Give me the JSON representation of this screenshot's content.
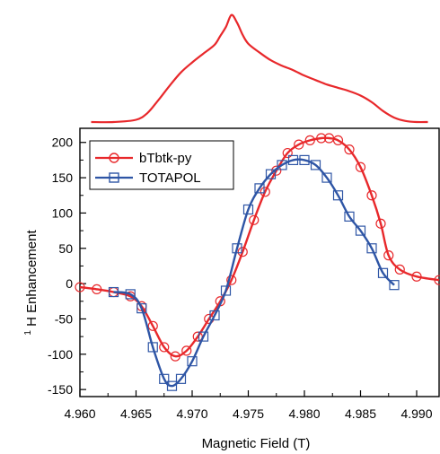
{
  "chart_data": [
    {
      "type": "line",
      "title": "",
      "xlabel": "",
      "ylabel": "",
      "xlim": [
        4.96,
        4.992
      ],
      "color": "#e8282b",
      "x": [
        4.961,
        4.963,
        4.965,
        4.966,
        4.967,
        4.968,
        4.969,
        4.97,
        4.971,
        4.972,
        4.9725,
        4.973,
        4.9735,
        4.974,
        4.9745,
        4.975,
        4.976,
        4.977,
        4.978,
        4.979,
        4.98,
        4.981,
        4.982,
        4.983,
        4.984,
        4.985,
        4.986,
        4.987,
        4.988,
        4.989,
        4.99,
        4.991
      ],
      "values": [
        0.0,
        0.0,
        0.02,
        0.08,
        0.2,
        0.33,
        0.45,
        0.54,
        0.62,
        0.7,
        0.78,
        0.86,
        0.97,
        0.9,
        0.79,
        0.71,
        0.63,
        0.56,
        0.51,
        0.47,
        0.42,
        0.38,
        0.34,
        0.31,
        0.28,
        0.24,
        0.18,
        0.1,
        0.04,
        0.01,
        0.0,
        0.0
      ]
    },
    {
      "type": "line",
      "title": "",
      "xlabel": "Magnetic Field (T)",
      "ylabel_superscript": "1",
      "ylabel": "H Enhancement",
      "xlim": [
        4.96,
        4.992
      ],
      "ylim": [
        -160,
        220
      ],
      "xticks": [
        "4.960",
        "4.965",
        "4.970",
        "4.975",
        "4.980",
        "4.985",
        "4.990"
      ],
      "yticks": [
        "-150",
        "-100",
        "-50",
        "0",
        "50",
        "100",
        "150",
        "200"
      ],
      "legend_position": "top-left",
      "series": [
        {
          "name": "bTbtk-py",
          "color": "#e8282b",
          "marker": "circle",
          "x": [
            4.96,
            4.9615,
            4.963,
            4.9645,
            4.9655,
            4.9665,
            4.9675,
            4.9685,
            4.9695,
            4.9705,
            4.9715,
            4.9725,
            4.9735,
            4.9745,
            4.9755,
            4.9765,
            4.9775,
            4.9785,
            4.9795,
            4.9805,
            4.9815,
            4.9822,
            4.983,
            4.984,
            4.985,
            4.986,
            4.9868,
            4.9875,
            4.9885,
            4.99,
            4.992
          ],
          "values": [
            -5,
            -8,
            -12,
            -18,
            -32,
            -60,
            -90,
            -103,
            -95,
            -75,
            -50,
            -25,
            5,
            45,
            90,
            130,
            160,
            185,
            197,
            203,
            206,
            206,
            203,
            190,
            165,
            125,
            85,
            40,
            20,
            10,
            5
          ]
        },
        {
          "name": "TOTAPOL",
          "color": "#2e55a5",
          "marker": "square",
          "x": [
            4.963,
            4.9645,
            4.9655,
            4.9665,
            4.9675,
            4.9682,
            4.969,
            4.97,
            4.971,
            4.972,
            4.973,
            4.974,
            4.975,
            4.976,
            4.977,
            4.978,
            4.979,
            4.98,
            4.981,
            4.982,
            4.983,
            4.984,
            4.985,
            4.986,
            4.987,
            4.988
          ],
          "values": [
            -12,
            -15,
            -35,
            -90,
            -135,
            -145,
            -135,
            -110,
            -75,
            -45,
            -10,
            50,
            105,
            135,
            155,
            168,
            175,
            175,
            168,
            150,
            125,
            95,
            75,
            50,
            15,
            -2
          ]
        }
      ]
    }
  ]
}
